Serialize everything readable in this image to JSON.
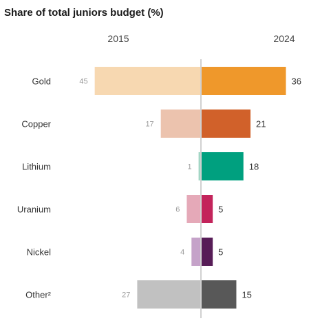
{
  "chart_data": {
    "type": "bar",
    "title": "Share of total juniors budget (%)",
    "categories": [
      "Gold",
      "Copper",
      "Lithium",
      "Uranium",
      "Nickel",
      "Other²"
    ],
    "series": [
      {
        "name": "2015",
        "values": [
          45,
          17,
          1,
          6,
          4,
          27
        ]
      },
      {
        "name": "2024",
        "values": [
          36,
          21,
          18,
          5,
          5,
          15
        ]
      }
    ],
    "colors_left": [
      "#f7d8b1",
      "#ecc3ae",
      "#a3d6c5",
      "#e5a9b8",
      "#c5a2c9",
      "#c1c1c1"
    ],
    "colors_right": [
      "#ef982b",
      "#d1612a",
      "#00a07f",
      "#c3245b",
      "#571d57",
      "#585858"
    ],
    "layout": "diverging bars around a center line; 2015 to the left, 2024 to the right"
  }
}
